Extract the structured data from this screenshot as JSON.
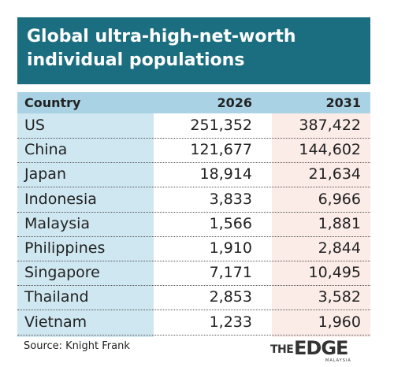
{
  "header": {
    "title": "Global ultra-high-net-worth individual populations"
  },
  "table": {
    "columns": [
      "Country",
      "2026",
      "2031"
    ],
    "rows": [
      [
        "US",
        "251,352",
        "387,422"
      ],
      [
        "China",
        "121,677",
        "144,602"
      ],
      [
        "Japan",
        "18,914",
        "21,634"
      ],
      [
        "Indonesia",
        "3,833",
        "6,966"
      ],
      [
        "Malaysia",
        "1,566",
        "1,881"
      ],
      [
        "Philippines",
        "1,910",
        "2,844"
      ],
      [
        "Singapore",
        "7,171",
        "10,495"
      ],
      [
        "Thailand",
        "2,853",
        "3,582"
      ],
      [
        "Vietnam",
        "1,233",
        "1,960"
      ]
    ]
  },
  "footer": {
    "source": "Source: Knight Frank",
    "logo_the": "THE",
    "logo_edge": "EDGE",
    "logo_sub": "MALAYSIA"
  }
}
